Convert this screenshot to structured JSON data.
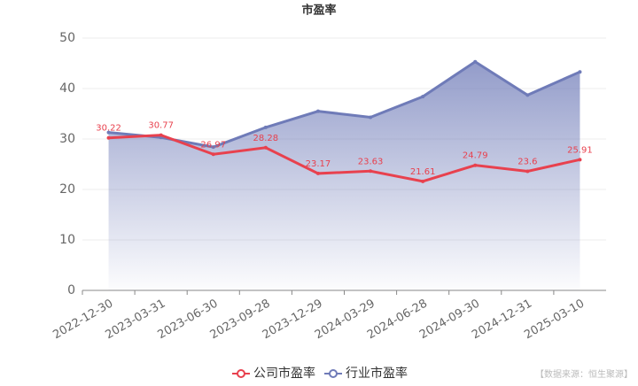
{
  "chart_data": {
    "type": "line",
    "title": "市盈率",
    "categories": [
      "2022-12-30",
      "2023-03-31",
      "2023-06-30",
      "2023-09-28",
      "2023-12-29",
      "2024-03-29",
      "2024-06-28",
      "2024-09-30",
      "2024-12-31",
      "2025-03-10"
    ],
    "series": [
      {
        "name": "公司市盈率",
        "color": "#e8414e",
        "values": [
          30.22,
          30.77,
          26.97,
          28.28,
          23.17,
          23.63,
          21.61,
          24.79,
          23.6,
          25.91
        ]
      },
      {
        "name": "行业市盈率",
        "color": "#6f7bb8",
        "area": true,
        "values": [
          31.3,
          30.3,
          28.4,
          32.3,
          35.5,
          34.3,
          38.4,
          45.3,
          38.7,
          43.3
        ]
      }
    ],
    "ylim": [
      0,
      50
    ],
    "yticks": [
      0,
      10,
      20,
      30,
      40,
      50
    ],
    "grid": true,
    "data_labels_series": 0,
    "legend": "bottom"
  },
  "source": "【数据来源：恒生聚源】"
}
